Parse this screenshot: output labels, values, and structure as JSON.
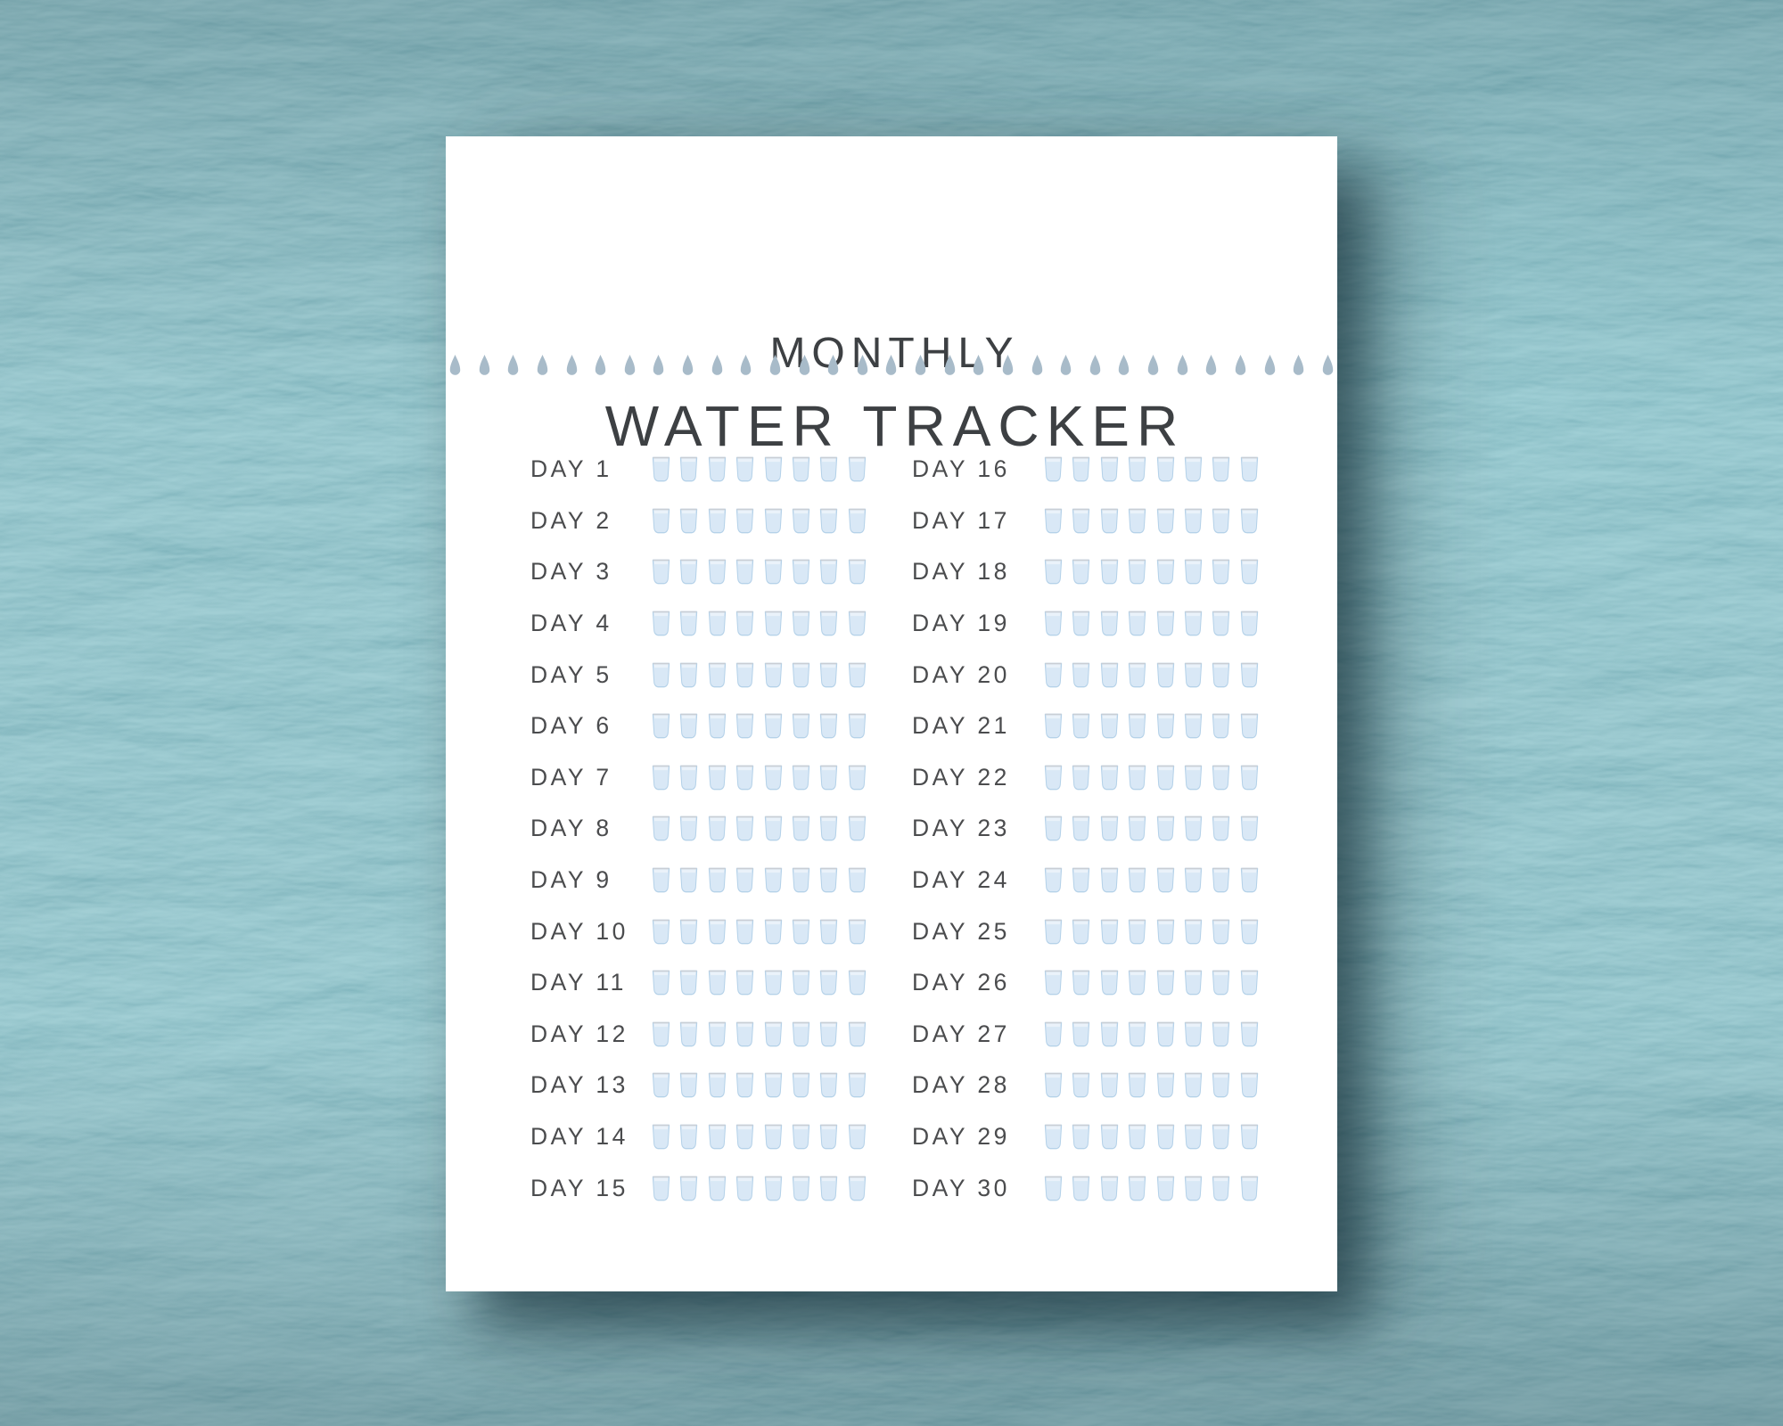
{
  "header": {
    "title_line1": "MONTHLY",
    "title_line2": "WATER TRACKER"
  },
  "divider": {
    "icon": "water-drop-icon",
    "drop_count": 31
  },
  "tracker": {
    "cups_per_day": 8,
    "cup_icon": "water-glass-icon",
    "columns": [
      {
        "days": [
          "DAY 1",
          "DAY 2",
          "DAY 3",
          "DAY 4",
          "DAY 5",
          "DAY 6",
          "DAY 7",
          "DAY 8",
          "DAY 9",
          "DAY 10",
          "DAY 11",
          "DAY 12",
          "DAY 13",
          "DAY 14",
          "DAY 15"
        ]
      },
      {
        "days": [
          "DAY 16",
          "DAY 17",
          "DAY 18",
          "DAY 19",
          "DAY 20",
          "DAY 21",
          "DAY 22",
          "DAY 23",
          "DAY 24",
          "DAY 25",
          "DAY 26",
          "DAY 27",
          "DAY 28",
          "DAY 29",
          "DAY 30"
        ]
      }
    ]
  },
  "colors": {
    "water_deep": "#0b4c5d",
    "water_mid": "#156a7e",
    "water_light": "#3f93a5",
    "paper": "#ffffff",
    "title_text": "#3d4043",
    "day_text": "#4b4c4e",
    "drop": "#a8bbc9",
    "cup_fill": "#eaf2fa",
    "cup_water": "#d9e8f6",
    "cup_outline": "#b5d2e9",
    "cup_rim": "#c9ced5"
  }
}
